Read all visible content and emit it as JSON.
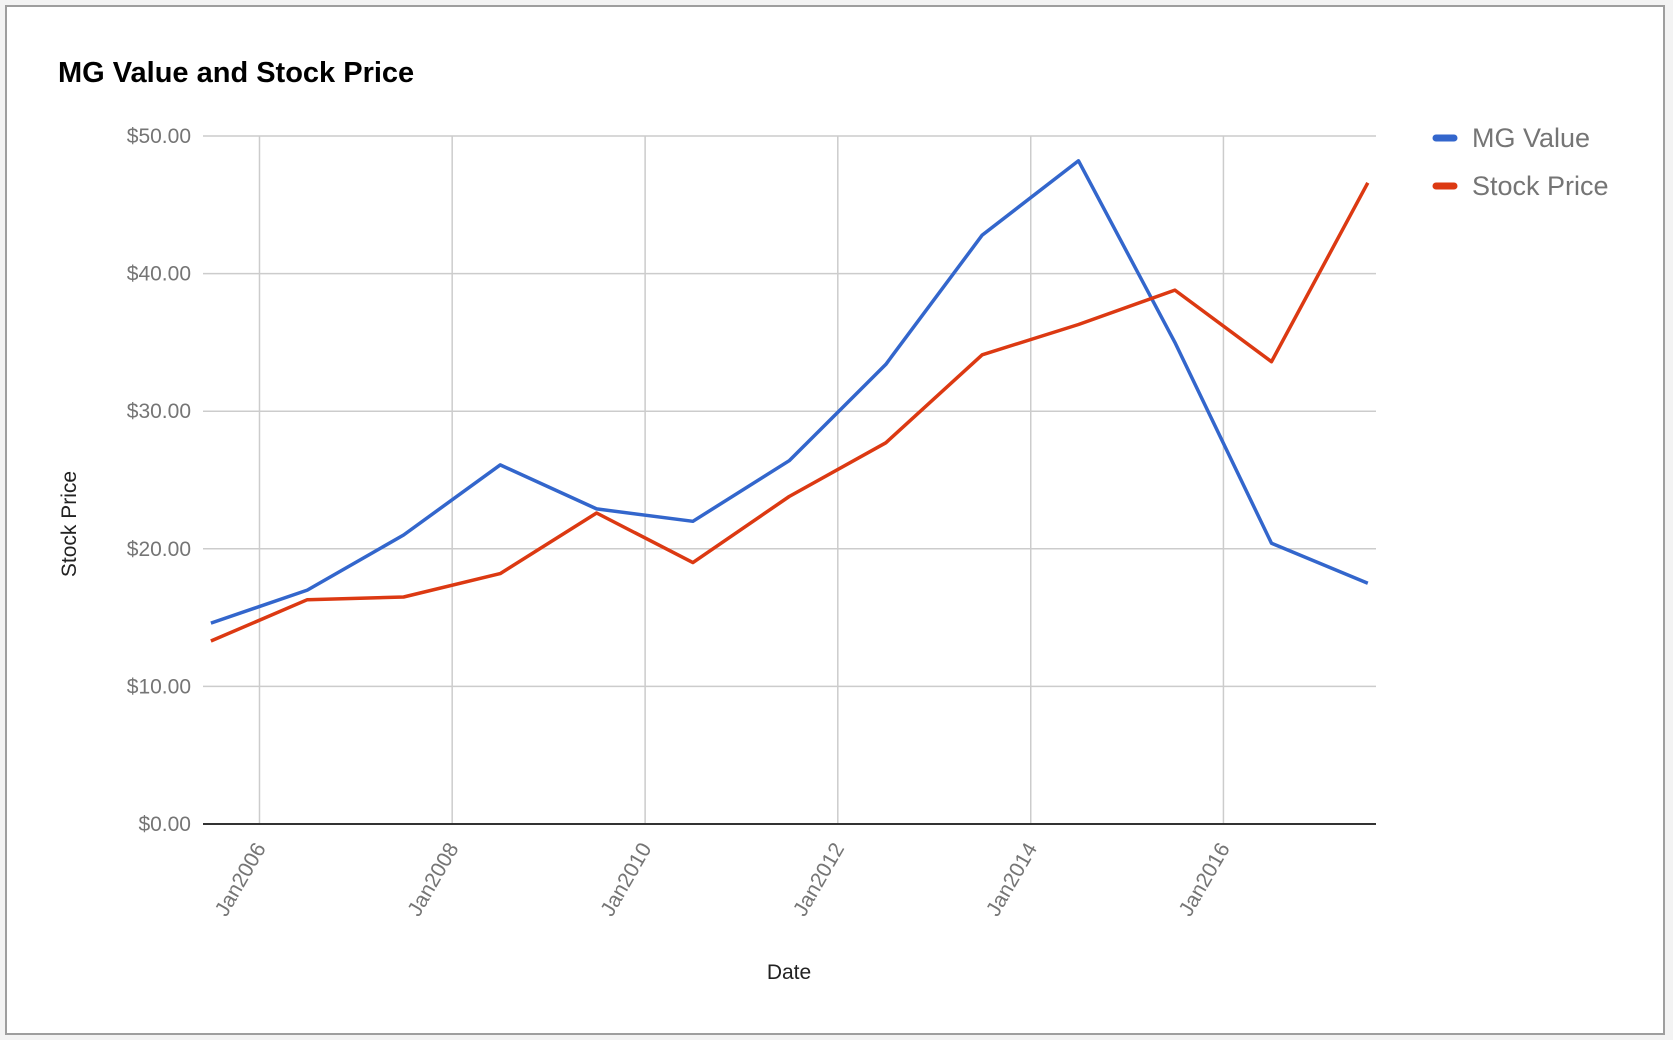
{
  "chart_data": {
    "type": "line",
    "title": "MG Value and Stock Price",
    "xlabel": "Date",
    "ylabel": "Stock Price",
    "y_ticks": [
      "$0.00",
      "$10.00",
      "$20.00",
      "$30.00",
      "$40.00",
      "$50.00"
    ],
    "ylim": [
      0,
      50
    ],
    "x_ticks": [
      "Jan2006",
      "Jan2008",
      "Jan2010",
      "Jan2012",
      "Jan2014",
      "Jan2016"
    ],
    "xlim": [
      "2005-06-01",
      "2017-08-01"
    ],
    "x": [
      "2005-07-01",
      "2006-07-01",
      "2007-07-01",
      "2008-07-01",
      "2009-07-01",
      "2010-07-01",
      "2011-07-01",
      "2012-07-01",
      "2013-07-01",
      "2014-07-01",
      "2015-07-01",
      "2016-07-01",
      "2017-07-01"
    ],
    "series": [
      {
        "name": "MG Value",
        "color": "#3366cc",
        "values": [
          14.6,
          17.0,
          21.0,
          26.1,
          22.9,
          22.0,
          26.4,
          33.4,
          42.8,
          48.2,
          35.0,
          20.4,
          17.5
        ]
      },
      {
        "name": "Stock Price",
        "color": "#dc3912",
        "values": [
          13.3,
          16.3,
          16.5,
          18.2,
          22.6,
          19.0,
          23.8,
          27.7,
          34.1,
          36.3,
          38.8,
          33.6,
          46.6
        ]
      }
    ],
    "grid": true,
    "legend": "right"
  }
}
